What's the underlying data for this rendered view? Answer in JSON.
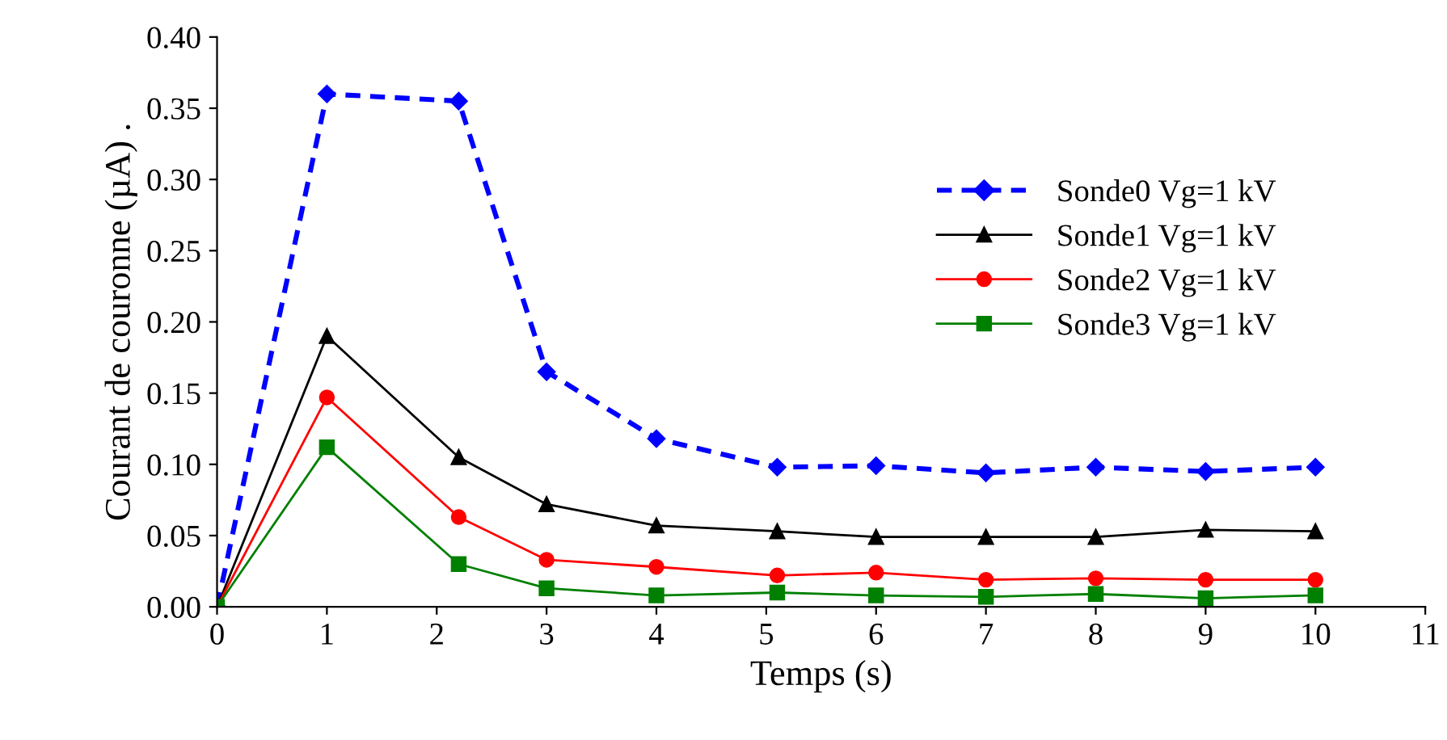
{
  "chart_data": {
    "type": "line",
    "xlabel": "Temps (s)",
    "ylabel": "Courant de couronne (µA) .",
    "x": [
      0,
      1,
      2.2,
      3,
      4,
      5.1,
      6,
      7,
      8,
      9,
      10
    ],
    "series": [
      {
        "name": "Sonde0 Vg=1 kV",
        "color": "#0000ff",
        "marker": "diamond",
        "line_style": "dashed",
        "values": [
          0,
          0.36,
          0.355,
          0.165,
          0.118,
          0.098,
          0.099,
          0.094,
          0.098,
          0.095,
          0.098
        ]
      },
      {
        "name": "Sonde1 Vg=1 kV",
        "color": "#000000",
        "marker": "triangle",
        "line_style": "solid",
        "values": [
          0,
          0.19,
          0.105,
          0.072,
          0.057,
          0.053,
          0.049,
          0.049,
          0.049,
          0.054,
          0.053
        ]
      },
      {
        "name": "Sonde2 Vg=1 kV",
        "color": "#ff0000",
        "marker": "circle",
        "line_style": "solid",
        "values": [
          0,
          0.147,
          0.063,
          0.033,
          0.028,
          0.022,
          0.024,
          0.019,
          0.02,
          0.019,
          0.019
        ]
      },
      {
        "name": "Sonde3 Vg=1 kV",
        "color": "#008000",
        "marker": "square",
        "line_style": "solid",
        "values": [
          0,
          0.112,
          0.03,
          0.013,
          0.008,
          0.01,
          0.008,
          0.007,
          0.009,
          0.006,
          0.008
        ]
      }
    ],
    "xlim": [
      0,
      11
    ],
    "xticks": [
      0,
      1,
      2,
      3,
      4,
      5,
      6,
      7,
      8,
      9,
      10,
      11
    ],
    "ylim": [
      0,
      0.4
    ],
    "yticks": [
      {
        "value": 0,
        "label": "0.00"
      },
      {
        "value": 0.05,
        "label": "0.05"
      },
      {
        "value": 0.1,
        "label": "0.10"
      },
      {
        "value": 0.15,
        "label": "0.15"
      },
      {
        "value": 0.2,
        "label": "0.20"
      },
      {
        "value": 0.25,
        "label": "0.25"
      },
      {
        "value": 0.3,
        "label": "0.30"
      },
      {
        "value": 0.35,
        "label": "0.35"
      },
      {
        "value": 0.4,
        "label": "0.40"
      }
    ],
    "grid": false,
    "legend": "top right"
  }
}
